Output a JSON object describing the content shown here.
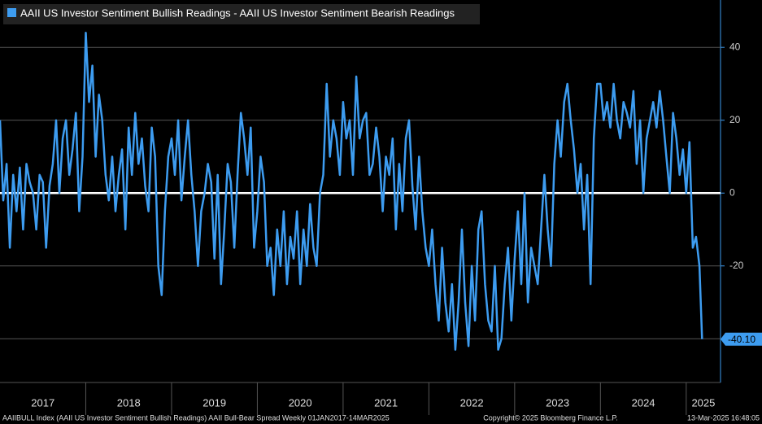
{
  "chart_data": {
    "type": "line",
    "legend": "AAII US Investor Sentiment Bullish Readings - AAII US Investor Sentiment Bearish Readings",
    "color": "#3d9cf0",
    "ylim": [
      -52,
      53
    ],
    "yticks": [
      -40,
      -20,
      0,
      20,
      40
    ],
    "xlim": [
      2017,
      2025.4
    ],
    "xticks": [
      2017,
      2018,
      2019,
      2020,
      2021,
      2022,
      2023,
      2024,
      2025
    ],
    "year_labels": [
      "2017",
      "2018",
      "2019",
      "2020",
      "2021",
      "2022",
      "2023",
      "2024",
      "2025"
    ],
    "grid": true,
    "last_value_label": "-40.10",
    "footer_left": "AAIIBULL Index (AAII US Investor Sentiment Bullish Readings) AAII Bull-Bear Spread  Weekly 01JAN2017-14MAR2025",
    "footer_center": "Copyright© 2025 Bloomberg Finance L.P.",
    "footer_right": "13-Mar-2025 16:48:05",
    "x": [
      2017.0,
      2017.038,
      2017.077,
      2017.115,
      2017.154,
      2017.192,
      2017.231,
      2017.269,
      2017.308,
      2017.346,
      2017.385,
      2017.423,
      2017.462,
      2017.5,
      2017.538,
      2017.577,
      2017.615,
      2017.654,
      2017.692,
      2017.731,
      2017.769,
      2017.808,
      2017.846,
      2017.885,
      2017.923,
      2017.962,
      2018.0,
      2018.038,
      2018.077,
      2018.115,
      2018.154,
      2018.192,
      2018.231,
      2018.269,
      2018.308,
      2018.346,
      2018.385,
      2018.423,
      2018.462,
      2018.5,
      2018.538,
      2018.577,
      2018.615,
      2018.654,
      2018.692,
      2018.731,
      2018.769,
      2018.808,
      2018.846,
      2018.885,
      2018.923,
      2018.962,
      2019.0,
      2019.038,
      2019.077,
      2019.115,
      2019.154,
      2019.192,
      2019.231,
      2019.269,
      2019.308,
      2019.346,
      2019.385,
      2019.423,
      2019.462,
      2019.5,
      2019.538,
      2019.577,
      2019.615,
      2019.654,
      2019.692,
      2019.731,
      2019.769,
      2019.808,
      2019.846,
      2019.885,
      2019.923,
      2019.962,
      2020.0,
      2020.038,
      2020.077,
      2020.115,
      2020.154,
      2020.192,
      2020.231,
      2020.269,
      2020.308,
      2020.346,
      2020.385,
      2020.423,
      2020.462,
      2020.5,
      2020.538,
      2020.577,
      2020.615,
      2020.654,
      2020.692,
      2020.731,
      2020.769,
      2020.808,
      2020.846,
      2020.885,
      2020.923,
      2020.962,
      2021.0,
      2021.038,
      2021.077,
      2021.115,
      2021.154,
      2021.192,
      2021.231,
      2021.269,
      2021.308,
      2021.346,
      2021.385,
      2021.423,
      2021.462,
      2021.5,
      2021.538,
      2021.577,
      2021.615,
      2021.654,
      2021.692,
      2021.731,
      2021.769,
      2021.808,
      2021.846,
      2021.885,
      2021.923,
      2021.962,
      2022.0,
      2022.038,
      2022.077,
      2022.115,
      2022.154,
      2022.192,
      2022.231,
      2022.269,
      2022.308,
      2022.346,
      2022.385,
      2022.423,
      2022.462,
      2022.5,
      2022.538,
      2022.577,
      2022.615,
      2022.654,
      2022.692,
      2022.731,
      2022.769,
      2022.808,
      2022.846,
      2022.885,
      2022.923,
      2022.962,
      2023.0,
      2023.038,
      2023.077,
      2023.115,
      2023.154,
      2023.192,
      2023.231,
      2023.269,
      2023.308,
      2023.346,
      2023.385,
      2023.423,
      2023.462,
      2023.5,
      2023.538,
      2023.577,
      2023.615,
      2023.654,
      2023.692,
      2023.731,
      2023.769,
      2023.808,
      2023.846,
      2023.885,
      2023.923,
      2023.962,
      2024.0,
      2024.038,
      2024.077,
      2024.115,
      2024.154,
      2024.192,
      2024.231,
      2024.269,
      2024.308,
      2024.346,
      2024.385,
      2024.423,
      2024.462,
      2024.5,
      2024.538,
      2024.577,
      2024.615,
      2024.654,
      2024.692,
      2024.731,
      2024.769,
      2024.808,
      2024.846,
      2024.885,
      2024.923,
      2024.962,
      2025.0,
      2025.038,
      2025.077,
      2025.115,
      2025.154,
      2025.185
    ],
    "values": [
      20,
      -2,
      8,
      -15,
      5,
      -5,
      7,
      -10,
      8,
      3,
      0,
      -10,
      5,
      3,
      -15,
      2,
      8,
      20,
      0,
      15,
      20,
      5,
      12,
      22,
      -5,
      10,
      44,
      25,
      35,
      10,
      27,
      20,
      5,
      -2,
      10,
      -5,
      5,
      12,
      -10,
      18,
      5,
      22,
      8,
      15,
      2,
      -5,
      18,
      10,
      -20,
      -28,
      -5,
      10,
      15,
      5,
      20,
      -2,
      10,
      20,
      5,
      -5,
      -20,
      -5,
      0,
      8,
      3,
      -18,
      5,
      -25,
      -10,
      8,
      3,
      -15,
      5,
      22,
      15,
      5,
      18,
      -15,
      -5,
      10,
      3,
      -20,
      -15,
      -28,
      -10,
      -20,
      -5,
      -25,
      -12,
      -18,
      -5,
      -25,
      -10,
      -20,
      -3,
      -15,
      -20,
      0,
      5,
      30,
      10,
      20,
      15,
      5,
      25,
      15,
      20,
      5,
      32,
      15,
      20,
      22,
      5,
      8,
      18,
      10,
      -5,
      10,
      5,
      15,
      -10,
      8,
      -5,
      15,
      20,
      2,
      -10,
      10,
      -5,
      -15,
      -20,
      -10,
      -25,
      -35,
      -15,
      -30,
      -38,
      -25,
      -43,
      -30,
      -10,
      -30,
      -42,
      -20,
      -35,
      -10,
      -5,
      -25,
      -35,
      -38,
      -20,
      -43,
      -40,
      -25,
      -15,
      -35,
      -18,
      -5,
      -25,
      0,
      -30,
      -15,
      -20,
      -25,
      -10,
      5,
      -10,
      -20,
      8,
      20,
      10,
      25,
      30,
      20,
      12,
      0,
      8,
      -10,
      5,
      -25,
      15,
      30,
      30,
      20,
      25,
      18,
      30,
      20,
      15,
      25,
      22,
      18,
      28,
      8,
      20,
      0,
      15,
      20,
      25,
      18,
      28,
      20,
      10,
      0,
      22,
      15,
      5,
      12,
      0,
      14,
      -15,
      -12,
      -20,
      -40.1
    ]
  }
}
